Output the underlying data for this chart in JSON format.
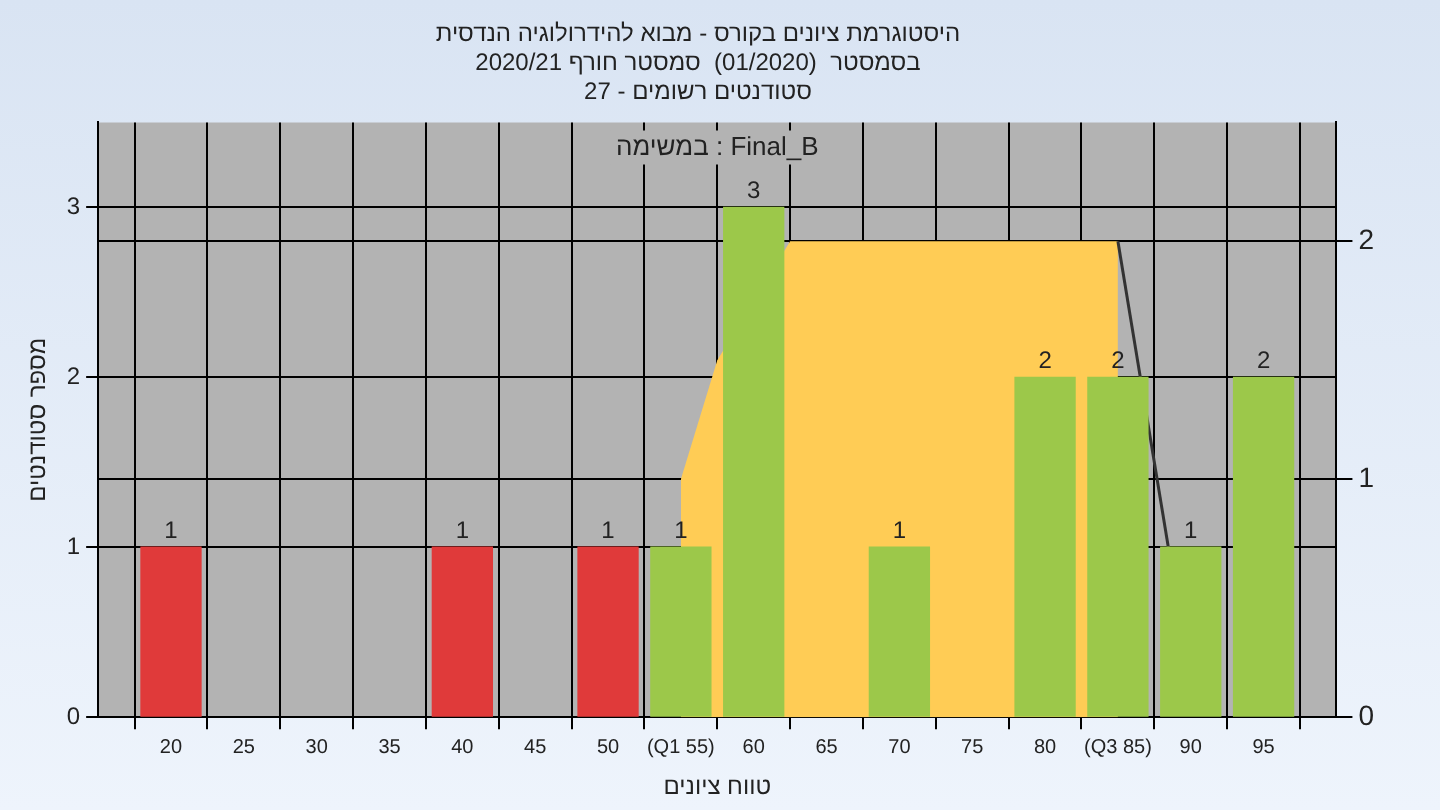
{
  "chart_data": {
    "type": "bar",
    "title": "היסטוגרמת ציונים בקורס - מבוא להידרולוגיה הנדסית",
    "subtitle": "בסמסטר  (01/2020)  סמסטר חורף 2020/21\nסטודנטים רשומים - 27",
    "xlabel": "טווח ציונים",
    "ylabel": "מספר סטודנטים",
    "annotations": [
      "Final_B : במשימה"
    ],
    "series": [
      {
        "x": [
          20,
          40,
          50,
          55,
          60,
          70,
          80,
          85,
          90,
          95
        ],
        "values": [
          1,
          1,
          1,
          1,
          3,
          1,
          2,
          2,
          1,
          2
        ],
        "value_labels": [
          "1",
          "1",
          "1",
          "1",
          "3",
          "1",
          "2",
          "2",
          "1",
          "2"
        ],
        "colors": [
          "#e03a3a",
          "#e03a3a",
          "#e03a3a",
          "#9cc84a",
          "#9cc84a",
          "#9cc84a",
          "#9cc84a",
          "#9cc84a",
          "#9cc84a",
          "#9cc84a"
        ]
      },
      {
        "type": "area",
        "axis": "y2",
        "x": [
          55,
          55,
          57.5,
          62.5,
          85,
          85
        ],
        "values": [
          0,
          1,
          1.5,
          2,
          2,
          0
        ],
        "color": "#ffcc55"
      },
      {
        "type": "line",
        "axis": "y2",
        "x": [
          85,
          88.5
        ],
        "values": [
          2,
          0.7
        ],
        "color": "#333333"
      }
    ],
    "xlim": [
      15,
      100
    ],
    "xticks": [
      {
        "value": 15,
        "label": null
      },
      20,
      25,
      30,
      35,
      40,
      45,
      50,
      {
        "value": 55,
        "label": "(Q1 55)"
      },
      60,
      65,
      70,
      75,
      80,
      {
        "value": 85,
        "label": "(Q3 85)"
      },
      90,
      95,
      {
        "value": 100,
        "label": null
      }
    ],
    "ylim": [
      0,
      3.5
    ],
    "yticks": [
      0,
      1,
      2,
      3
    ],
    "y2lim": [
      0,
      2.5
    ],
    "y2ticks": [
      0,
      1,
      2
    ],
    "grid": true
  }
}
